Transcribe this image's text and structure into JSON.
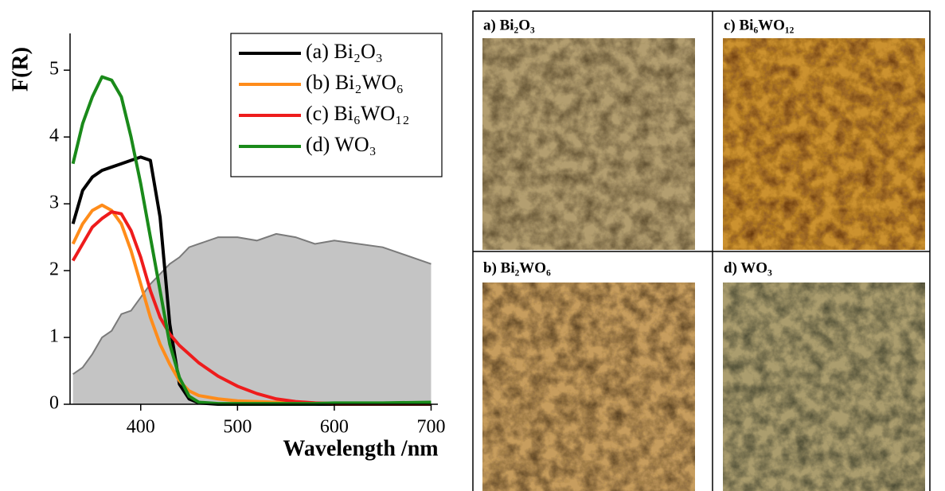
{
  "chart_data": {
    "type": "line",
    "y_label": "F(R)",
    "x_label": "Wavelength /nm",
    "x": [
      330,
      340,
      350,
      360,
      370,
      380,
      390,
      400,
      410,
      420,
      430,
      440,
      450,
      460,
      480,
      500,
      520,
      540,
      560,
      580,
      600,
      650,
      700
    ],
    "xlim": [
      327,
      707
    ],
    "xticks": [
      400,
      500,
      600,
      700
    ],
    "ylim": [
      0,
      5.55
    ],
    "yticks": [
      0,
      1,
      2,
      3,
      4,
      5
    ],
    "grid": false,
    "legend": "upper right",
    "background_area": {
      "color": "#c4c4c4",
      "line_color": "#7a7a7a",
      "values": [
        0.45,
        0.55,
        0.75,
        1.0,
        1.1,
        1.35,
        1.4,
        1.6,
        1.8,
        1.95,
        2.1,
        2.2,
        2.35,
        2.4,
        2.5,
        2.5,
        2.45,
        2.55,
        2.5,
        2.4,
        2.45,
        2.35,
        2.1
      ]
    },
    "series": [
      {
        "name": "(a) Bi₂O₃",
        "color": "#000000",
        "values": [
          2.7,
          3.2,
          3.4,
          3.5,
          3.55,
          3.6,
          3.65,
          3.7,
          3.65,
          2.8,
          1.2,
          0.3,
          0.08,
          0.02,
          0,
          0,
          0,
          0,
          0,
          0,
          0,
          0,
          0
        ]
      },
      {
        "name": "(b) Bi₂WO₆",
        "color": "#ff8c1a",
        "values": [
          2.4,
          2.7,
          2.9,
          2.98,
          2.9,
          2.7,
          2.3,
          1.8,
          1.3,
          0.9,
          0.6,
          0.35,
          0.2,
          0.13,
          0.08,
          0.05,
          0.04,
          0.03,
          0.02,
          0.02,
          0.01,
          0.01,
          0.01
        ]
      },
      {
        "name": "(c) Bi₆WO₁₂",
        "color": "#ee1c1c",
        "values": [
          2.15,
          2.4,
          2.65,
          2.78,
          2.88,
          2.85,
          2.6,
          2.2,
          1.7,
          1.3,
          1.05,
          0.88,
          0.75,
          0.62,
          0.42,
          0.27,
          0.16,
          0.08,
          0.04,
          0.02,
          0.01,
          0.01,
          0.01
        ]
      },
      {
        "name": "(d) WO₃",
        "color": "#1a8a1a",
        "values": [
          3.6,
          4.2,
          4.6,
          4.9,
          4.85,
          4.6,
          4.0,
          3.3,
          2.5,
          1.7,
          0.9,
          0.4,
          0.12,
          0.03,
          0.01,
          0.01,
          0.01,
          0.01,
          0.01,
          0.01,
          0.02,
          0.02,
          0.03
        ]
      }
    ]
  },
  "photos": {
    "labels": [
      "a) Bi₂O₃",
      "c) Bi₆WO₁₂",
      "b) Bi₂WO₆",
      "d) WO₃"
    ]
  }
}
